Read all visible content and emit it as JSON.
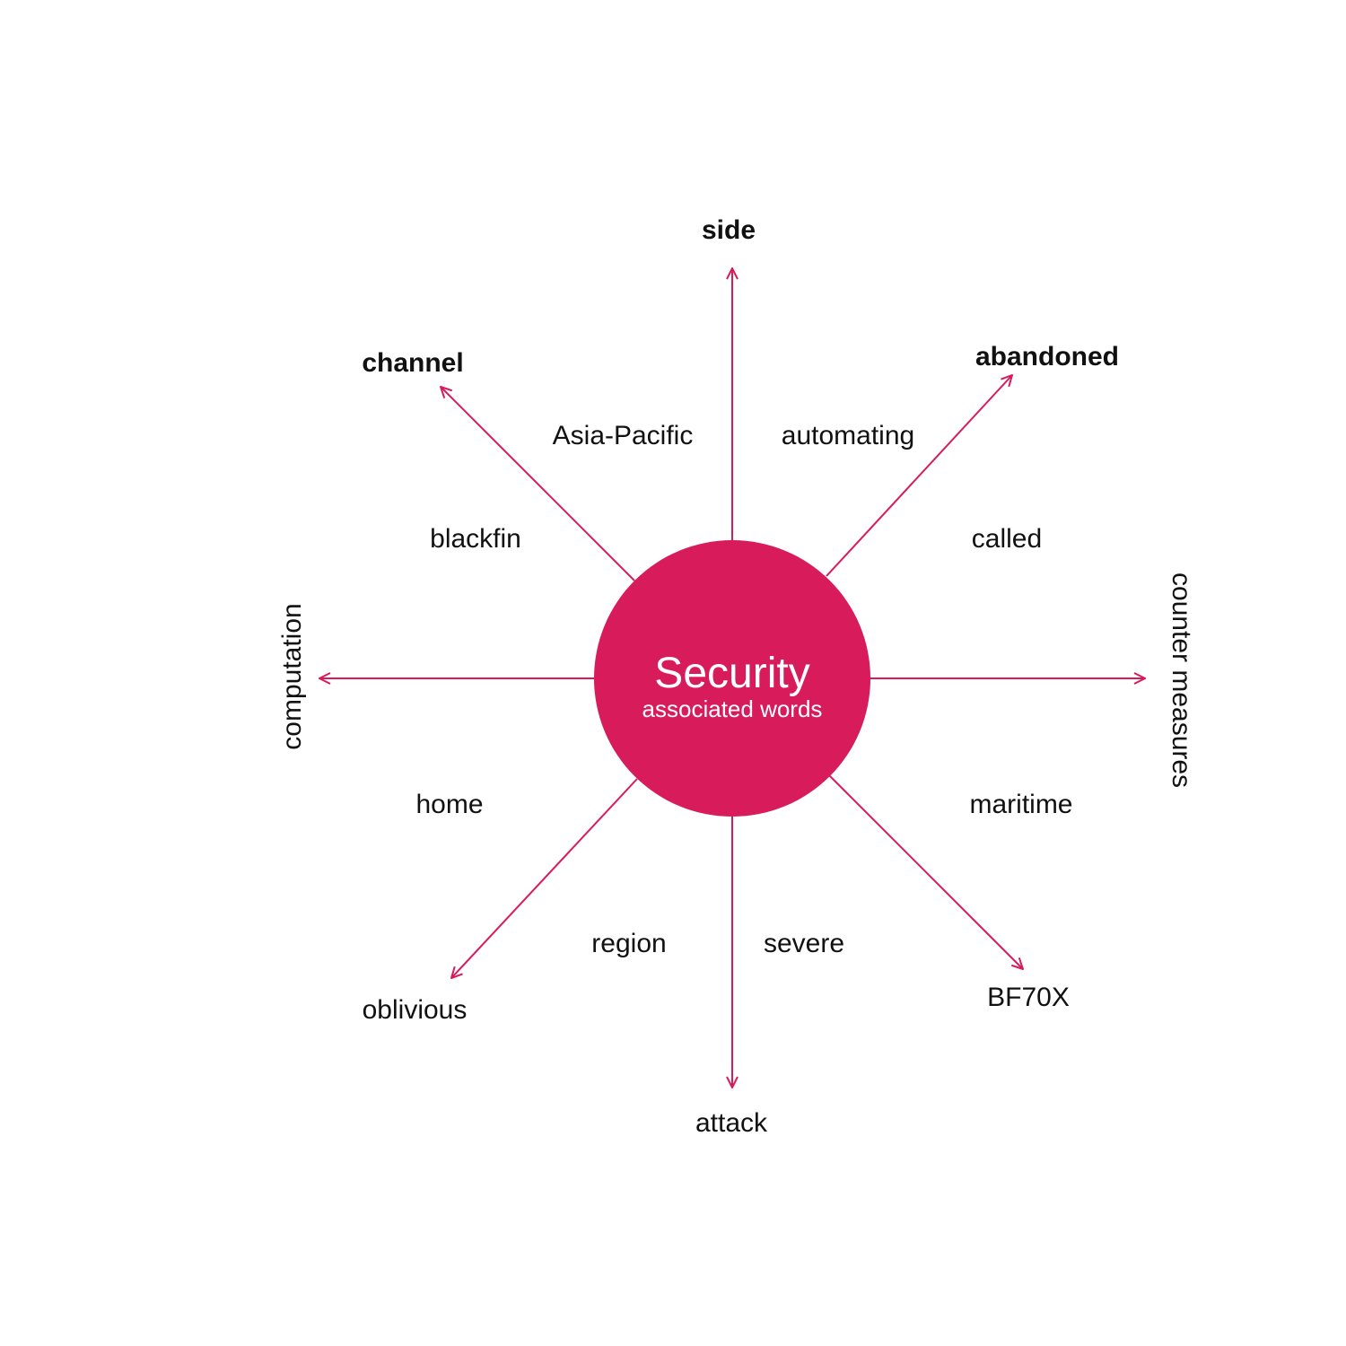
{
  "colors": {
    "accent": "#D81B5A",
    "text": "#111111",
    "background": "#ffffff"
  },
  "center": {
    "title": "Security",
    "subtitle": "associated words"
  },
  "arrow_words": {
    "top": "side",
    "top_right": "abandoned",
    "right": "counter measures",
    "bottom_right": "BF70X",
    "bottom": "attack",
    "bottom_left": "oblivious",
    "left": "computation",
    "top_left": "channel"
  },
  "inner_words": {
    "asia_pacific": "Asia-Pacific",
    "automating": "automating",
    "blackfin": "blackfin",
    "called": "called",
    "home": "home",
    "maritime": "maritime",
    "region": "region",
    "severe": "severe"
  }
}
